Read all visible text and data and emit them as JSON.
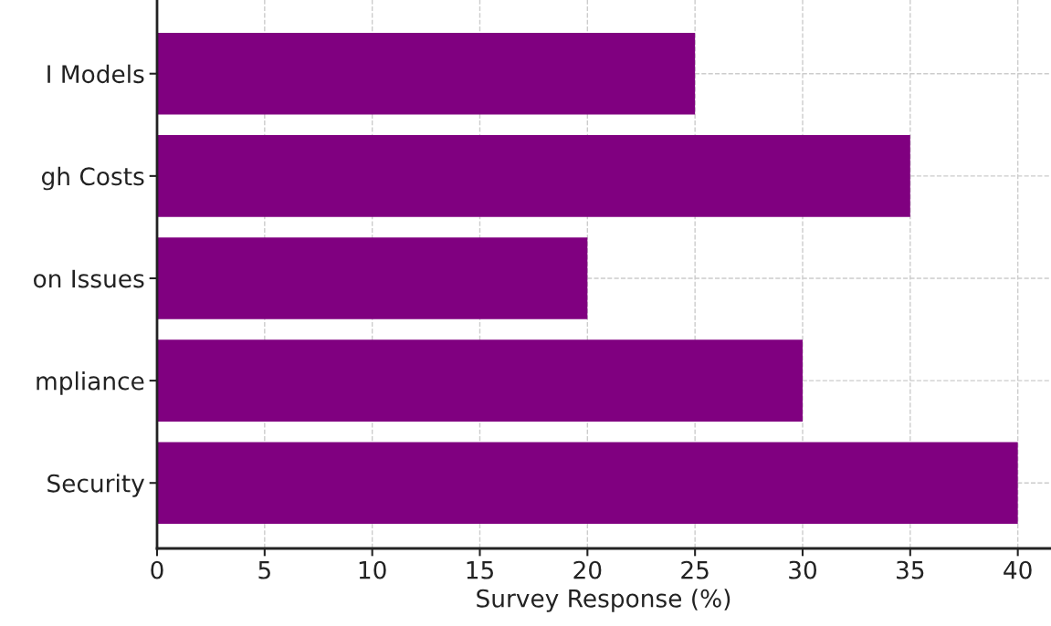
{
  "chart_data": {
    "type": "bar",
    "orientation": "horizontal",
    "categories": [
      "I Models",
      "gh Costs",
      "on Issues",
      "mpliance",
      "Security"
    ],
    "values": [
      25,
      35,
      20,
      30,
      40
    ],
    "color": "#800080",
    "xlabel": "Survey Response (%)",
    "xlim": [
      0,
      41.5
    ],
    "xticks": [
      0,
      5,
      10,
      15,
      20,
      25,
      30,
      35,
      40
    ],
    "grid": true
  }
}
